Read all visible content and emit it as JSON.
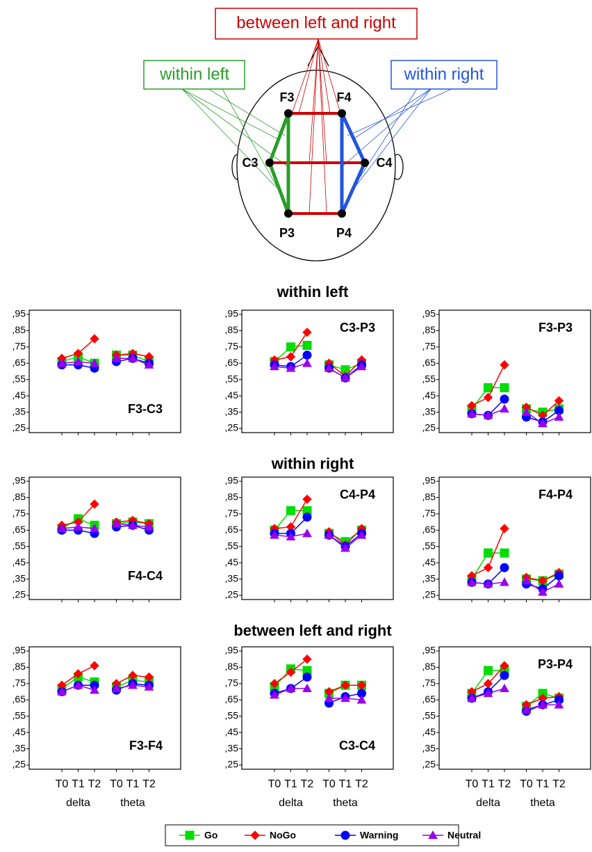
{
  "diagram": {
    "between_label": "between left and right",
    "within_left_label": "within left",
    "within_right_label": "within right",
    "electrodes": [
      "F3",
      "F4",
      "C3",
      "C4",
      "P3",
      "P4"
    ]
  },
  "sections": [
    "within left",
    "within right",
    "between left and right"
  ],
  "x_axis": {
    "categories": [
      "T0",
      "T1",
      "T2",
      "T0",
      "T1",
      "T2"
    ],
    "groups": [
      "delta",
      "theta"
    ]
  },
  "chart_data": [
    {
      "type": "line",
      "title": "F3-C3",
      "title_corner": "bottom-right",
      "ylim": [
        0.25,
        0.95
      ],
      "yticks": [
        {
          "value": 0.95,
          "label": ",95"
        },
        {
          "value": 0.85,
          "label": ",85"
        },
        {
          "value": 0.75,
          "label": ",75"
        },
        {
          "value": 0.65,
          "label": ",65"
        },
        {
          "value": 0.55,
          "label": ",55"
        },
        {
          "value": 0.45,
          "label": ",45"
        },
        {
          "value": 0.35,
          "label": ",35"
        },
        {
          "value": 0.25,
          "label": ",25"
        }
      ],
      "series": [
        {
          "name": "Go",
          "color": "#00dd00",
          "marker": "square",
          "values": [
            0.66,
            0.69,
            0.65,
            0.7,
            0.7,
            0.66
          ]
        },
        {
          "name": "NoGo",
          "color": "#ff0000",
          "marker": "diamond",
          "values": [
            0.68,
            0.71,
            0.8,
            0.7,
            0.71,
            0.69
          ]
        },
        {
          "name": "Warning",
          "color": "#0000ff",
          "marker": "circle",
          "values": [
            0.64,
            0.64,
            0.62,
            0.66,
            0.68,
            0.65
          ]
        },
        {
          "name": "Neutral",
          "color": "#9900ee",
          "marker": "triangle",
          "values": [
            0.65,
            0.66,
            0.65,
            0.68,
            0.68,
            0.64
          ]
        }
      ]
    },
    {
      "type": "line",
      "title": "C3-P3",
      "title_corner": "top-right",
      "ylim": [
        0.25,
        0.95
      ],
      "yticks": [
        {
          "value": 0.95,
          "label": ",95"
        },
        {
          "value": 0.85,
          "label": ",85"
        },
        {
          "value": 0.75,
          "label": ",75"
        },
        {
          "value": 0.65,
          "label": ",65"
        },
        {
          "value": 0.55,
          "label": ",55"
        },
        {
          "value": 0.45,
          "label": ",45"
        },
        {
          "value": 0.35,
          "label": ",35"
        },
        {
          "value": 0.25,
          "label": ",25"
        }
      ],
      "series": [
        {
          "name": "Go",
          "color": "#00dd00",
          "marker": "square",
          "values": [
            0.66,
            0.75,
            0.76,
            0.64,
            0.61,
            0.65
          ]
        },
        {
          "name": "NoGo",
          "color": "#ff0000",
          "marker": "diamond",
          "values": [
            0.67,
            0.69,
            0.84,
            0.65,
            0.57,
            0.67
          ]
        },
        {
          "name": "Warning",
          "color": "#0000ff",
          "marker": "circle",
          "values": [
            0.64,
            0.63,
            0.7,
            0.62,
            0.56,
            0.64
          ]
        },
        {
          "name": "Neutral",
          "color": "#9900ee",
          "marker": "triangle",
          "values": [
            0.63,
            0.62,
            0.65,
            0.62,
            0.56,
            0.63
          ]
        }
      ]
    },
    {
      "type": "line",
      "title": "F3-P3",
      "title_corner": "top-right",
      "ylim": [
        0.25,
        0.95
      ],
      "yticks": [
        {
          "value": 0.95,
          "label": ",95"
        },
        {
          "value": 0.85,
          "label": ",85"
        },
        {
          "value": 0.75,
          "label": ",75"
        },
        {
          "value": 0.65,
          "label": ",65"
        },
        {
          "value": 0.55,
          "label": ",55"
        },
        {
          "value": 0.45,
          "label": ",45"
        },
        {
          "value": 0.35,
          "label": ",35"
        },
        {
          "value": 0.25,
          "label": ",25"
        }
      ],
      "series": [
        {
          "name": "Go",
          "color": "#00dd00",
          "marker": "square",
          "values": [
            0.37,
            0.5,
            0.5,
            0.37,
            0.35,
            0.37
          ]
        },
        {
          "name": "NoGo",
          "color": "#ff0000",
          "marker": "diamond",
          "values": [
            0.39,
            0.44,
            0.64,
            0.38,
            0.33,
            0.42
          ]
        },
        {
          "name": "Warning",
          "color": "#0000ff",
          "marker": "circle",
          "values": [
            0.34,
            0.33,
            0.43,
            0.32,
            0.29,
            0.36
          ]
        },
        {
          "name": "Neutral",
          "color": "#9900ee",
          "marker": "triangle",
          "values": [
            0.34,
            0.33,
            0.37,
            0.35,
            0.28,
            0.32
          ]
        }
      ]
    },
    {
      "type": "line",
      "title": "F4-C4",
      "title_corner": "bottom-right",
      "ylim": [
        0.25,
        0.95
      ],
      "yticks": [
        {
          "value": 0.95,
          "label": ",95"
        },
        {
          "value": 0.85,
          "label": ",85"
        },
        {
          "value": 0.75,
          "label": ",75"
        },
        {
          "value": 0.65,
          "label": ",65"
        },
        {
          "value": 0.55,
          "label": ",55"
        },
        {
          "value": 0.45,
          "label": ",45"
        },
        {
          "value": 0.35,
          "label": ",35"
        },
        {
          "value": 0.25,
          "label": ",25"
        }
      ],
      "series": [
        {
          "name": "Go",
          "color": "#00dd00",
          "marker": "square",
          "values": [
            0.66,
            0.72,
            0.68,
            0.69,
            0.7,
            0.69
          ]
        },
        {
          "name": "NoGo",
          "color": "#ff0000",
          "marker": "diamond",
          "values": [
            0.68,
            0.7,
            0.81,
            0.7,
            0.71,
            0.69
          ]
        },
        {
          "name": "Warning",
          "color": "#0000ff",
          "marker": "circle",
          "values": [
            0.65,
            0.65,
            0.63,
            0.67,
            0.68,
            0.65
          ]
        },
        {
          "name": "Neutral",
          "color": "#9900ee",
          "marker": "triangle",
          "values": [
            0.66,
            0.67,
            0.66,
            0.69,
            0.68,
            0.67
          ]
        }
      ]
    },
    {
      "type": "line",
      "title": "C4-P4",
      "title_corner": "top-right",
      "ylim": [
        0.25,
        0.95
      ],
      "yticks": [
        {
          "value": 0.95,
          "label": ",95"
        },
        {
          "value": 0.85,
          "label": ",85"
        },
        {
          "value": 0.75,
          "label": ",75"
        },
        {
          "value": 0.65,
          "label": ",65"
        },
        {
          "value": 0.55,
          "label": ",55"
        },
        {
          "value": 0.45,
          "label": ",45"
        },
        {
          "value": 0.35,
          "label": ",35"
        },
        {
          "value": 0.25,
          "label": ",25"
        }
      ],
      "series": [
        {
          "name": "Go",
          "color": "#00dd00",
          "marker": "square",
          "values": [
            0.65,
            0.77,
            0.77,
            0.63,
            0.58,
            0.65
          ]
        },
        {
          "name": "NoGo",
          "color": "#ff0000",
          "marker": "diamond",
          "values": [
            0.66,
            0.67,
            0.84,
            0.64,
            0.56,
            0.66
          ]
        },
        {
          "name": "Warning",
          "color": "#0000ff",
          "marker": "circle",
          "values": [
            0.63,
            0.63,
            0.73,
            0.62,
            0.55,
            0.63
          ]
        },
        {
          "name": "Neutral",
          "color": "#9900ee",
          "marker": "triangle",
          "values": [
            0.62,
            0.61,
            0.63,
            0.62,
            0.54,
            0.62
          ]
        }
      ]
    },
    {
      "type": "line",
      "title": "F4-P4",
      "title_corner": "top-right",
      "ylim": [
        0.25,
        0.95
      ],
      "yticks": [
        {
          "value": 0.95,
          "label": ",95"
        },
        {
          "value": 0.85,
          "label": ",85"
        },
        {
          "value": 0.75,
          "label": ",75"
        },
        {
          "value": 0.65,
          "label": ",65"
        },
        {
          "value": 0.55,
          "label": ",55"
        },
        {
          "value": 0.45,
          "label": ",45"
        },
        {
          "value": 0.35,
          "label": ",35"
        },
        {
          "value": 0.25,
          "label": ",25"
        }
      ],
      "series": [
        {
          "name": "Go",
          "color": "#00dd00",
          "marker": "square",
          "values": [
            0.35,
            0.51,
            0.51,
            0.35,
            0.34,
            0.38
          ]
        },
        {
          "name": "NoGo",
          "color": "#ff0000",
          "marker": "diamond",
          "values": [
            0.37,
            0.42,
            0.66,
            0.36,
            0.34,
            0.39
          ]
        },
        {
          "name": "Warning",
          "color": "#0000ff",
          "marker": "circle",
          "values": [
            0.33,
            0.32,
            0.42,
            0.32,
            0.29,
            0.37
          ]
        },
        {
          "name": "Neutral",
          "color": "#9900ee",
          "marker": "triangle",
          "values": [
            0.33,
            0.32,
            0.33,
            0.34,
            0.27,
            0.32
          ]
        }
      ]
    },
    {
      "type": "line",
      "title": "F3-F4",
      "title_corner": "bottom-right",
      "ylim": [
        0.25,
        0.95
      ],
      "yticks": [
        {
          "value": 0.95,
          "label": ",95"
        },
        {
          "value": 0.85,
          "label": ",85"
        },
        {
          "value": 0.75,
          "label": ",75"
        },
        {
          "value": 0.65,
          "label": ",65"
        },
        {
          "value": 0.55,
          "label": ",55"
        },
        {
          "value": 0.45,
          "label": ",45"
        },
        {
          "value": 0.35,
          "label": ",35"
        },
        {
          "value": 0.25,
          "label": ",25"
        }
      ],
      "series": [
        {
          "name": "Go",
          "color": "#00dd00",
          "marker": "square",
          "values": [
            0.72,
            0.79,
            0.76,
            0.73,
            0.77,
            0.76
          ]
        },
        {
          "name": "NoGo",
          "color": "#ff0000",
          "marker": "diamond",
          "values": [
            0.74,
            0.81,
            0.86,
            0.75,
            0.8,
            0.79
          ]
        },
        {
          "name": "Warning",
          "color": "#0000ff",
          "marker": "circle",
          "values": [
            0.7,
            0.74,
            0.74,
            0.71,
            0.75,
            0.74
          ]
        },
        {
          "name": "Neutral",
          "color": "#9900ee",
          "marker": "triangle",
          "values": [
            0.7,
            0.74,
            0.71,
            0.72,
            0.74,
            0.73
          ]
        }
      ]
    },
    {
      "type": "line",
      "title": "C3-C4",
      "title_corner": "bottom-right",
      "ylim": [
        0.25,
        0.95
      ],
      "yticks": [
        {
          "value": 0.95,
          "label": ",95"
        },
        {
          "value": 0.85,
          "label": ",85"
        },
        {
          "value": 0.75,
          "label": ",75"
        },
        {
          "value": 0.65,
          "label": ",65"
        },
        {
          "value": 0.55,
          "label": ",55"
        },
        {
          "value": 0.45,
          "label": ",45"
        },
        {
          "value": 0.35,
          "label": ",35"
        },
        {
          "value": 0.25,
          "label": ",25"
        }
      ],
      "series": [
        {
          "name": "Go",
          "color": "#00dd00",
          "marker": "square",
          "values": [
            0.73,
            0.84,
            0.83,
            0.69,
            0.74,
            0.74
          ]
        },
        {
          "name": "NoGo",
          "color": "#ff0000",
          "marker": "diamond",
          "values": [
            0.75,
            0.82,
            0.9,
            0.7,
            0.74,
            0.74
          ]
        },
        {
          "name": "Warning",
          "color": "#0000ff",
          "marker": "circle",
          "values": [
            0.69,
            0.72,
            0.79,
            0.63,
            0.67,
            0.69
          ]
        },
        {
          "name": "Neutral",
          "color": "#9900ee",
          "marker": "triangle",
          "values": [
            0.68,
            0.72,
            0.72,
            0.66,
            0.66,
            0.65
          ]
        }
      ]
    },
    {
      "type": "line",
      "title": "P3-P4",
      "title_corner": "top-right",
      "ylim": [
        0.25,
        0.95
      ],
      "yticks": [
        {
          "value": 0.95,
          "label": ",95"
        },
        {
          "value": 0.85,
          "label": ",85"
        },
        {
          "value": 0.75,
          "label": ",75"
        },
        {
          "value": 0.65,
          "label": ",65"
        },
        {
          "value": 0.55,
          "label": ",55"
        },
        {
          "value": 0.45,
          "label": ",45"
        },
        {
          "value": 0.35,
          "label": ",35"
        },
        {
          "value": 0.25,
          "label": ",25"
        }
      ],
      "series": [
        {
          "name": "Go",
          "color": "#00dd00",
          "marker": "square",
          "values": [
            0.69,
            0.83,
            0.83,
            0.61,
            0.69,
            0.66
          ]
        },
        {
          "name": "NoGo",
          "color": "#ff0000",
          "marker": "diamond",
          "values": [
            0.7,
            0.75,
            0.86,
            0.62,
            0.66,
            0.67
          ]
        },
        {
          "name": "Warning",
          "color": "#0000ff",
          "marker": "circle",
          "values": [
            0.66,
            0.7,
            0.8,
            0.58,
            0.62,
            0.65
          ]
        },
        {
          "name": "Neutral",
          "color": "#9900ee",
          "marker": "triangle",
          "values": [
            0.66,
            0.69,
            0.72,
            0.59,
            0.62,
            0.62
          ]
        }
      ]
    }
  ]
}
